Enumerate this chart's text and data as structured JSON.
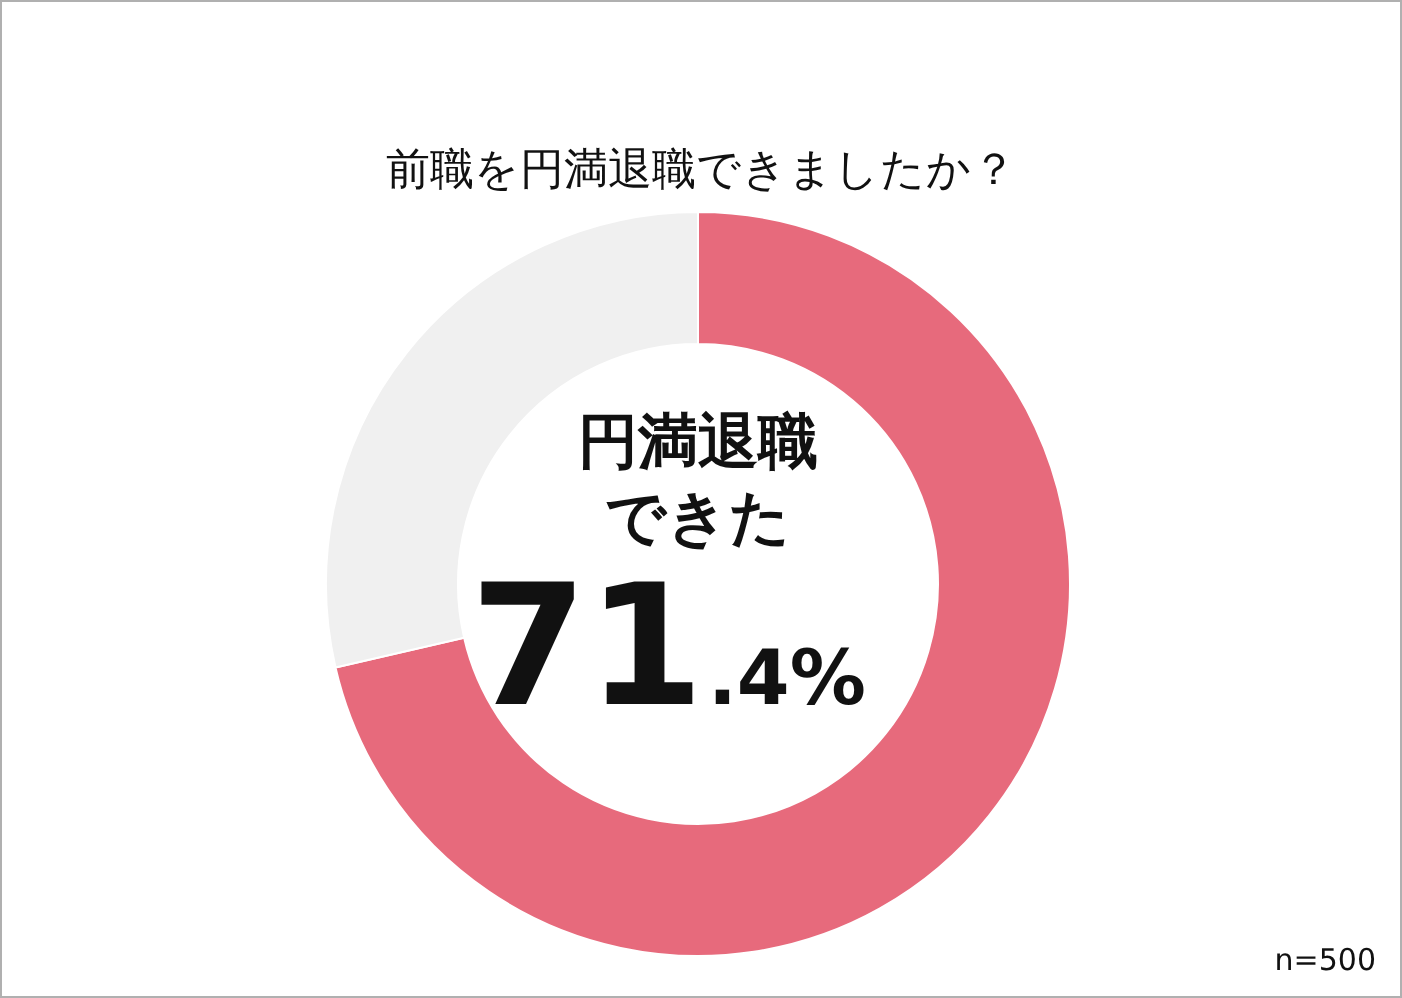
{
  "chart_data": {
    "type": "donut",
    "title": "前職を円満退職できましたか？",
    "categories": [
      "円満退職できた",
      null
    ],
    "values": [
      71.4,
      28.6
    ],
    "colors": [
      "#e76a7c",
      "#f0f0f0"
    ],
    "value_labels": [
      "71.4%",
      null
    ],
    "annotations": [
      "n=500"
    ]
  }
}
